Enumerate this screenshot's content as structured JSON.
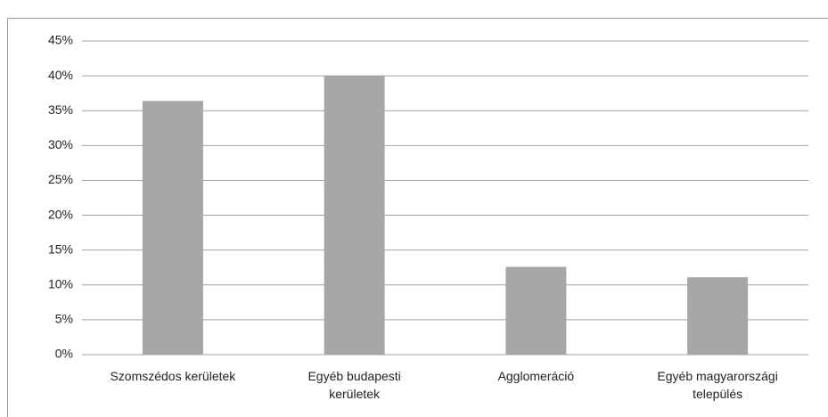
{
  "chart_data": {
    "type": "bar",
    "categories": [
      "Szomszédos kerületek",
      "Egyéb budapesti kerületek",
      "Agglomeráció",
      "Egyéb magyarországi település"
    ],
    "values": [
      36.4,
      40.0,
      12.6,
      11.1
    ],
    "color": "#a6a6a6",
    "ylim": [
      0,
      45
    ],
    "yticks": [
      {
        "value": 0,
        "label": "0%"
      },
      {
        "value": 5,
        "label": "5%"
      },
      {
        "value": 10,
        "label": "10%"
      },
      {
        "value": 15,
        "label": "15%"
      },
      {
        "value": 20,
        "label": "20%"
      },
      {
        "value": 25,
        "label": "25%"
      },
      {
        "value": 30,
        "label": "30%"
      },
      {
        "value": 35,
        "label": "35%"
      },
      {
        "value": 40,
        "label": "40%"
      },
      {
        "value": 45,
        "label": "45%"
      }
    ],
    "grid": true
  }
}
